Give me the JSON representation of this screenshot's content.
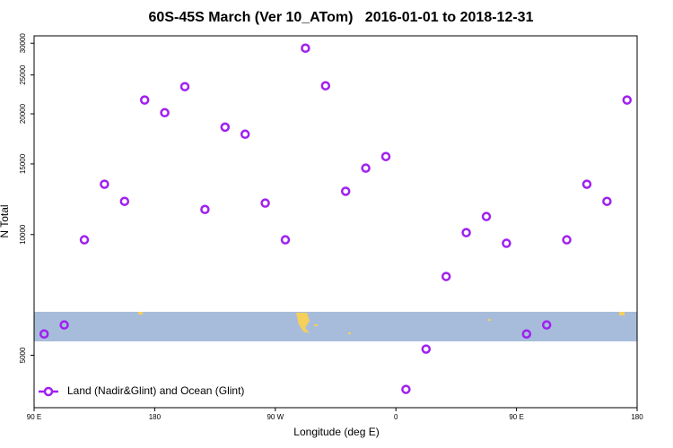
{
  "chart_data": {
    "type": "scatter",
    "title": "60S-45S March (Ver 10_ATom)   2016-01-01 to 2018-12-31",
    "x_label": "Longitude (deg E)",
    "y_label": "N Total",
    "xlim": [
      90,
      540
    ],
    "ylim": [
      3700,
      31300
    ],
    "y_log": true,
    "legend": "bottomleft",
    "xticks": [
      {
        "value": 90,
        "label": "90 E"
      },
      180,
      {
        "value": 270,
        "label": "90 W"
      },
      {
        "value": 360,
        "label": "0"
      },
      {
        "value": 450,
        "label": "90 E"
      },
      {
        "value": 540,
        "label": "180"
      }
    ],
    "yticks": [
      5000,
      10000,
      15000,
      20000,
      25000,
      30000
    ],
    "series": [
      {
        "name": "Land (Nadir&Glint) and Ocean (Glint)",
        "color": "#a020f0",
        "x": [
          97.5,
          112.5,
          127.5,
          142.5,
          157.5,
          172.5,
          187.5,
          202.5,
          217.5,
          232.5,
          247.5,
          262.5,
          277.5,
          292.5,
          307.5,
          322.5,
          337.5,
          352.5,
          367.5,
          382.5,
          397.5,
          412.5,
          427.5,
          442.5,
          457.5,
          472.5,
          487.5,
          502.5,
          517.5,
          532.5
        ],
        "values": [
          5650,
          5950,
          9700,
          13350,
          12100,
          21650,
          20130,
          23380,
          11550,
          18530,
          17790,
          11980,
          9700,
          29160,
          23500,
          12820,
          14640,
          15650,
          4110,
          5180,
          7860,
          10110,
          11090,
          9510,
          5650,
          5950,
          9700,
          13350,
          12100,
          21650
        ]
      }
    ]
  }
}
